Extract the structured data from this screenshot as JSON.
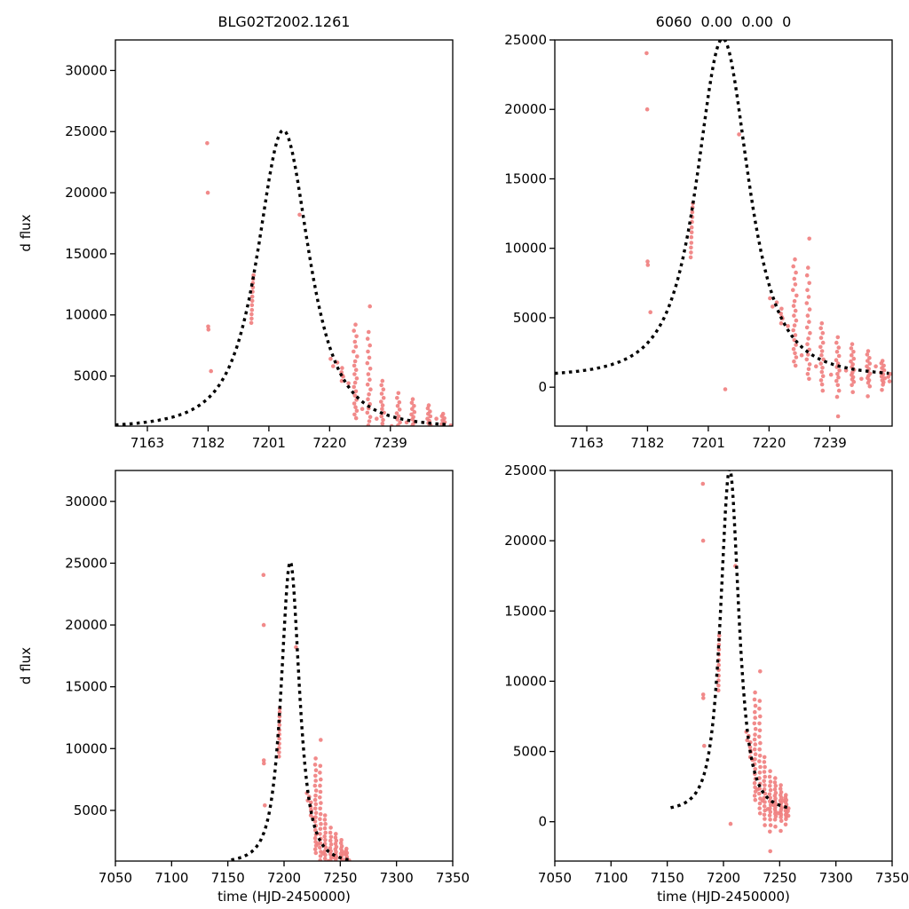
{
  "figure": {
    "background": "#ffffff",
    "point_color": "#f08080",
    "curve_color": "#000000",
    "axis_color": "#000000",
    "tick_font_size": 15,
    "title_font_size": 16,
    "label_font_size": 15
  },
  "chart_data": {
    "type": "scatter",
    "panels": [
      {
        "id": "top-left",
        "title": "BLG02T2002.1261",
        "xlabel": "",
        "ylabel": "d flux",
        "xlim": [
          7153,
          7258.5
        ],
        "ylim": [
          900,
          32500
        ],
        "xticks": [
          7163,
          7182,
          7201,
          7220,
          7239
        ],
        "yticks": [
          5000,
          10000,
          15000,
          20000,
          25000,
          30000
        ],
        "grid": false
      },
      {
        "id": "top-right",
        "title": "6060  0.00  0.00  0",
        "xlabel": "",
        "ylabel": "",
        "xlim": [
          7153,
          7258.5
        ],
        "ylim": [
          -2800,
          25000
        ],
        "xticks": [
          7163,
          7182,
          7201,
          7220,
          7239
        ],
        "yticks": [
          0,
          5000,
          10000,
          15000,
          20000,
          25000
        ],
        "grid": false
      },
      {
        "id": "bottom-left",
        "title": "",
        "xlabel": "time (HJD-2450000)",
        "ylabel": "d flux",
        "xlim": [
          7050,
          7350
        ],
        "ylim": [
          900,
          32500
        ],
        "xticks": [
          7050,
          7100,
          7150,
          7200,
          7250,
          7300,
          7350
        ],
        "yticks": [
          5000,
          10000,
          15000,
          20000,
          25000,
          30000
        ],
        "grid": false
      },
      {
        "id": "bottom-right",
        "title": "",
        "xlabel": "time (HJD-2450000)",
        "ylabel": "",
        "xlim": [
          7050,
          7350
        ],
        "ylim": [
          -2800,
          25000
        ],
        "xticks": [
          7050,
          7100,
          7150,
          7200,
          7250,
          7300,
          7350
        ],
        "yticks": [
          0,
          5000,
          10000,
          15000,
          20000,
          25000
        ],
        "grid": false
      }
    ],
    "model_curve": {
      "shape": "microlensing-peak",
      "t0": 7205.5,
      "width": 12.4,
      "power": 1.5,
      "baseline": 700,
      "amplitude": 24400,
      "t_min": 7153,
      "t_max": 7257.5,
      "line_style": "dashed",
      "dash": "3.5 4.5",
      "line_width": 3.4
    },
    "points": [
      [
        7181.7,
        24050
      ],
      [
        7181.9,
        20000
      ],
      [
        7182.0,
        9050
      ],
      [
        7182.1,
        8800
      ],
      [
        7182.9,
        5400
      ],
      [
        7195.5,
        9350
      ],
      [
        7195.6,
        9700
      ],
      [
        7195.6,
        10050
      ],
      [
        7195.7,
        10400
      ],
      [
        7195.7,
        10800
      ],
      [
        7195.8,
        11150
      ],
      [
        7195.8,
        11500
      ],
      [
        7195.9,
        11900
      ],
      [
        7196.0,
        12250
      ],
      [
        7196.0,
        12600
      ],
      [
        7196.1,
        12950
      ],
      [
        7196.2,
        13250
      ],
      [
        7210.6,
        18200
      ],
      [
        7206.3,
        -150
      ],
      [
        7220.3,
        6400
      ],
      [
        7221.1,
        5800
      ],
      [
        7223.9,
        5650
      ],
      [
        7223.7,
        5300
      ],
      [
        7224.2,
        4950
      ],
      [
        7223.8,
        4600
      ],
      [
        7224.0,
        5050
      ],
      [
        7222.4,
        6100
      ],
      [
        7225.9,
        4400
      ],
      [
        7228.1,
        9200
      ],
      [
        7227.6,
        8700
      ],
      [
        7228.4,
        8250
      ],
      [
        7227.9,
        7800
      ],
      [
        7228.2,
        7400
      ],
      [
        7227.5,
        7000
      ],
      [
        7228.6,
        6600
      ],
      [
        7228.0,
        6200
      ],
      [
        7227.7,
        5850
      ],
      [
        7228.3,
        5500
      ],
      [
        7227.8,
        5150
      ],
      [
        7228.5,
        4800
      ],
      [
        7228.0,
        4450
      ],
      [
        7227.6,
        4100
      ],
      [
        7228.2,
        3750
      ],
      [
        7227.9,
        3400
      ],
      [
        7228.4,
        3050
      ],
      [
        7227.7,
        2750
      ],
      [
        7228.1,
        2450
      ],
      [
        7228.5,
        2150
      ],
      [
        7227.8,
        1850
      ],
      [
        7228.3,
        1550
      ],
      [
        7232.6,
        10700
      ],
      [
        7232.2,
        8600
      ],
      [
        7231.9,
        8050
      ],
      [
        7232.6,
        7500
      ],
      [
        7232.0,
        7000
      ],
      [
        7232.4,
        6500
      ],
      [
        7231.8,
        6050
      ],
      [
        7232.7,
        5600
      ],
      [
        7232.1,
        5150
      ],
      [
        7232.5,
        4700
      ],
      [
        7231.9,
        4300
      ],
      [
        7232.8,
        3900
      ],
      [
        7232.3,
        3500
      ],
      [
        7232.0,
        3100
      ],
      [
        7232.6,
        2700
      ],
      [
        7232.2,
        2350
      ],
      [
        7231.8,
        2000
      ],
      [
        7232.7,
        1650
      ],
      [
        7232.4,
        1300
      ],
      [
        7232.1,
        950
      ],
      [
        7232.5,
        600
      ],
      [
        7230.2,
        2300
      ],
      [
        7234.7,
        1500
      ],
      [
        7236.5,
        4600
      ],
      [
        7236.2,
        4250
      ],
      [
        7236.8,
        3900
      ],
      [
        7236.3,
        3550
      ],
      [
        7236.9,
        3200
      ],
      [
        7236.1,
        2900
      ],
      [
        7236.6,
        2600
      ],
      [
        7236.4,
        2300
      ],
      [
        7237.0,
        2000
      ],
      [
        7236.2,
        1700
      ],
      [
        7236.7,
        1400
      ],
      [
        7236.5,
        1100
      ],
      [
        7236.9,
        800
      ],
      [
        7236.3,
        500
      ],
      [
        7236.6,
        200
      ],
      [
        7236.8,
        -250
      ],
      [
        7239.4,
        900
      ],
      [
        7241.5,
        3600
      ],
      [
        7241.1,
        3200
      ],
      [
        7241.8,
        2850
      ],
      [
        7241.3,
        2550
      ],
      [
        7241.9,
        2250
      ],
      [
        7241.0,
        1950
      ],
      [
        7241.6,
        1700
      ],
      [
        7241.2,
        1450
      ],
      [
        7242.0,
        1200
      ],
      [
        7241.4,
        950
      ],
      [
        7241.7,
        700
      ],
      [
        7241.1,
        450
      ],
      [
        7241.5,
        150
      ],
      [
        7241.9,
        -250
      ],
      [
        7241.3,
        -700
      ],
      [
        7241.6,
        -2100
      ],
      [
        7244.1,
        1200
      ],
      [
        7246.0,
        3100
      ],
      [
        7245.7,
        2800
      ],
      [
        7246.4,
        2550
      ],
      [
        7245.8,
        2300
      ],
      [
        7246.5,
        2050
      ],
      [
        7245.6,
        1850
      ],
      [
        7246.2,
        1650
      ],
      [
        7245.9,
        1450
      ],
      [
        7246.6,
        1250
      ],
      [
        7246.1,
        1050
      ],
      [
        7245.8,
        880
      ],
      [
        7246.3,
        720
      ],
      [
        7246.0,
        560
      ],
      [
        7246.5,
        380
      ],
      [
        7245.9,
        150
      ],
      [
        7246.2,
        -350
      ],
      [
        7248.9,
        600
      ],
      [
        7251.0,
        2600
      ],
      [
        7250.7,
        2350
      ],
      [
        7251.4,
        2100
      ],
      [
        7250.8,
        1900
      ],
      [
        7251.5,
        1700
      ],
      [
        7250.6,
        1500
      ],
      [
        7251.2,
        1320
      ],
      [
        7250.9,
        1150
      ],
      [
        7251.6,
        980
      ],
      [
        7251.1,
        820
      ],
      [
        7250.8,
        660
      ],
      [
        7251.3,
        500
      ],
      [
        7251.0,
        320
      ],
      [
        7251.5,
        60
      ],
      [
        7250.9,
        -650
      ],
      [
        7253.4,
        1500
      ],
      [
        7255.5,
        1900
      ],
      [
        7255.1,
        1720
      ],
      [
        7255.9,
        1550
      ],
      [
        7255.3,
        1380
      ],
      [
        7256.0,
        1220
      ],
      [
        7255.0,
        1060
      ],
      [
        7255.7,
        920
      ],
      [
        7255.2,
        780
      ],
      [
        7256.2,
        640
      ],
      [
        7255.4,
        500
      ],
      [
        7255.8,
        360
      ],
      [
        7255.6,
        180
      ],
      [
        7255.3,
        -200
      ],
      [
        7257.3,
        750
      ],
      [
        7257.7,
        420
      ],
      [
        7257.9,
        950
      ]
    ]
  }
}
